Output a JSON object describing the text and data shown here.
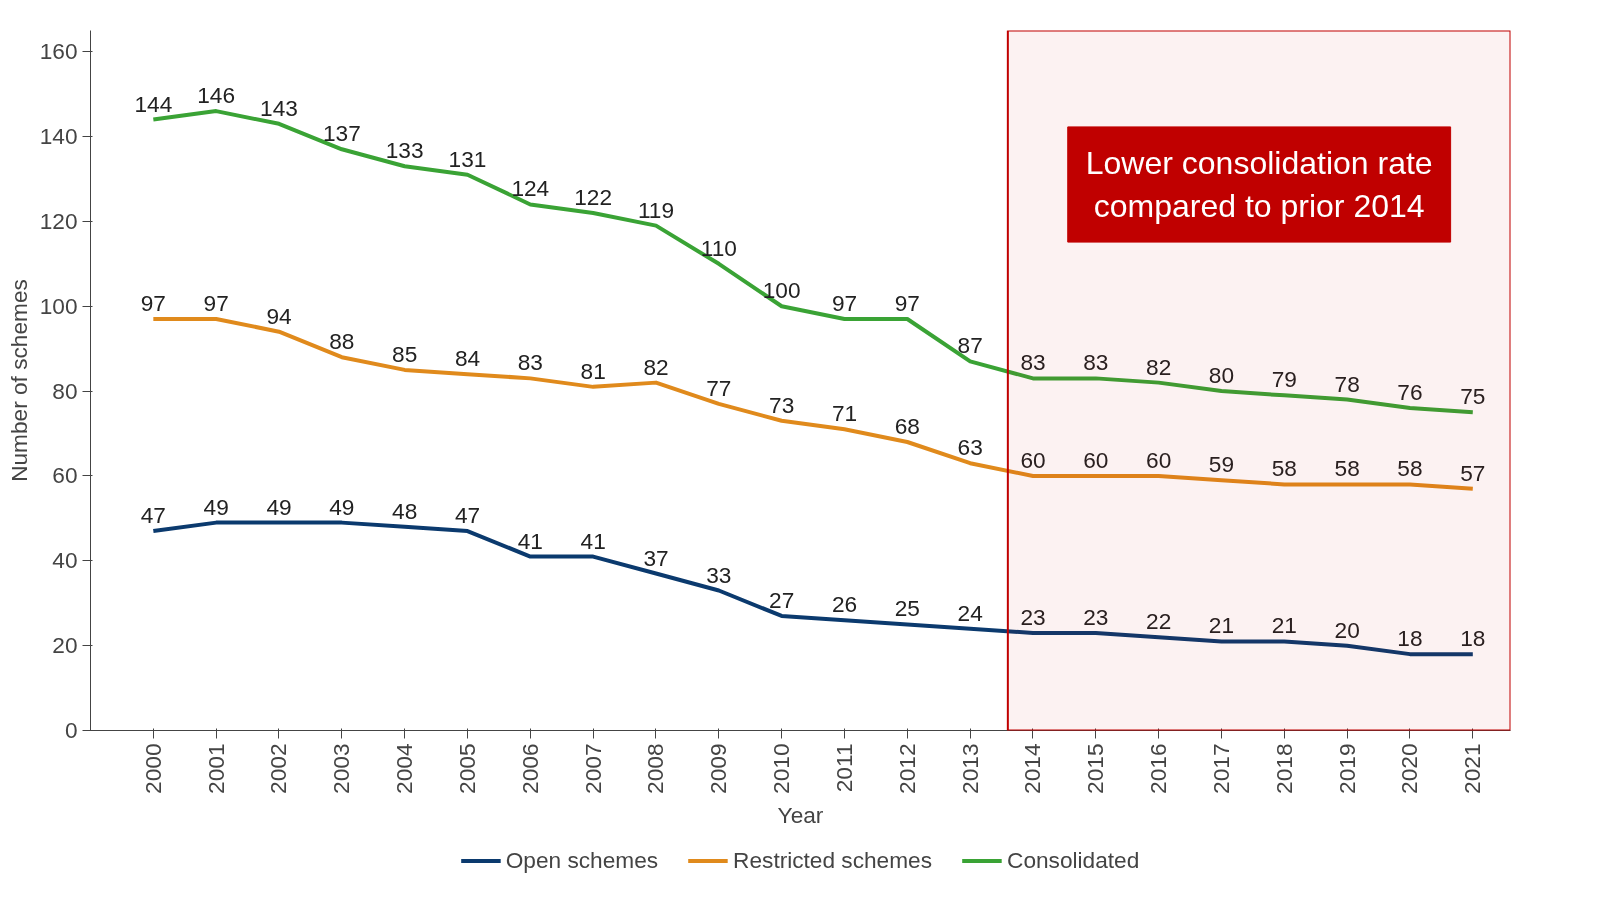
{
  "chart_data": {
    "type": "line",
    "xlabel": "Year",
    "ylabel": "Number of schemes",
    "x": [
      2000,
      2001,
      2002,
      2003,
      2004,
      2005,
      2006,
      2007,
      2008,
      2009,
      2010,
      2011,
      2012,
      2013,
      2014,
      2015,
      2016,
      2017,
      2018,
      2019,
      2020,
      2021
    ],
    "series": [
      {
        "name": "Open schemes",
        "color": "#0b3a6e",
        "values": [
          47,
          49,
          49,
          49,
          48,
          47,
          41,
          41,
          37,
          33,
          27,
          26,
          25,
          24,
          23,
          23,
          22,
          21,
          21,
          20,
          18,
          18
        ]
      },
      {
        "name": "Restricted schemes",
        "color": "#e08a1c",
        "values": [
          97,
          97,
          94,
          88,
          85,
          84,
          83,
          81,
          82,
          77,
          73,
          71,
          68,
          63,
          60,
          60,
          60,
          59,
          58,
          58,
          58,
          57
        ]
      },
      {
        "name": "Consolidated",
        "color": "#3aa335",
        "values": [
          144,
          146,
          143,
          137,
          133,
          131,
          124,
          122,
          119,
          110,
          100,
          97,
          97,
          87,
          83,
          83,
          82,
          80,
          79,
          78,
          76,
          75
        ]
      }
    ],
    "xlim": [
      1999,
      2021.6
    ],
    "ylim": [
      0,
      165
    ],
    "xticks": [
      2000,
      2001,
      2002,
      2003,
      2004,
      2005,
      2006,
      2007,
      2008,
      2009,
      2010,
      2011,
      2012,
      2013,
      2014,
      2015,
      2016,
      2017,
      2018,
      2019,
      2020,
      2021
    ],
    "yticks": [
      0,
      20,
      40,
      60,
      80,
      100,
      120,
      140,
      160
    ],
    "bands": [
      {
        "axis": "x",
        "from": 2013.6,
        "to": 2021.6,
        "label": "Lower consolidation rate\ncompared to prior 2014",
        "color": "#c00000"
      }
    ],
    "data_labels": true,
    "grid": false,
    "legend": "bottom",
    "marker": "none",
    "line_style": "solid"
  }
}
